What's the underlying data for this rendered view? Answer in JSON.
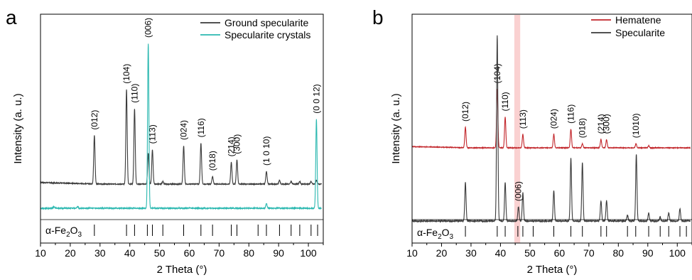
{
  "chart_data": [
    {
      "type": "line",
      "panel_label": "a",
      "xlabel": "2 Theta (°)",
      "ylabel": "Intensity (a. u.)",
      "xlim": [
        10,
        105
      ],
      "xticks": [
        10,
        20,
        30,
        40,
        50,
        60,
        70,
        80,
        90,
        100
      ],
      "legend_position": "top-right",
      "series": [
        {
          "name": "Ground specularite",
          "color": "#3a3a3a",
          "baseline": 0.11,
          "peaks": [
            {
              "x": 28.1,
              "h": 0.38,
              "label": "(012)"
            },
            {
              "x": 38.9,
              "h": 0.74,
              "label": "(104)"
            },
            {
              "x": 41.6,
              "h": 0.59,
              "label": "(110)"
            },
            {
              "x": 46.2,
              "h": 0.24
            },
            {
              "x": 47.6,
              "h": 0.27,
              "label": "(113)"
            },
            {
              "x": 51.1,
              "h": 0.02
            },
            {
              "x": 58.1,
              "h": 0.3,
              "label": "(024)"
            },
            {
              "x": 63.9,
              "h": 0.32,
              "label": "(116)"
            },
            {
              "x": 67.8,
              "h": 0.06,
              "label": "(018)"
            },
            {
              "x": 74.1,
              "h": 0.17,
              "label": "(214)"
            },
            {
              "x": 76.0,
              "h": 0.19,
              "label": "(300)"
            },
            {
              "x": 85.9,
              "h": 0.1,
              "label": "(1 0 10)"
            },
            {
              "x": 90.3,
              "h": 0.03
            },
            {
              "x": 94.2,
              "h": 0.02
            },
            {
              "x": 97.1,
              "h": 0.02
            },
            {
              "x": 100.9,
              "h": 0.02
            },
            {
              "x": 102.7,
              "h": 0.03
            }
          ]
        },
        {
          "name": "Specularite crystals",
          "color": "#2bb8b0",
          "baseline": 0.0,
          "peaks": [
            {
              "x": 14.5,
              "h": 0.01
            },
            {
              "x": 22.5,
              "h": 0.01
            },
            {
              "x": 46.2,
              "h": 1.0,
              "label": "(006)"
            },
            {
              "x": 85.9,
              "h": 0.03
            },
            {
              "x": 102.7,
              "h": 0.54,
              "label": "(0 0 12)"
            }
          ]
        }
      ],
      "reference": {
        "label": "α-Fe2O3",
        "positions": [
          28.1,
          38.9,
          41.6,
          45.9,
          47.6,
          51.1,
          58.1,
          63.9,
          67.8,
          74.1,
          76.0,
          83.1,
          85.9,
          90.3,
          94.2,
          97.1,
          100.9,
          103.1
        ]
      }
    },
    {
      "type": "line",
      "panel_label": "b",
      "xlabel": "2 Theta (°)",
      "ylabel": "Intensity (a. u.)",
      "xlim": [
        10,
        105
      ],
      "xticks": [
        10,
        20,
        30,
        40,
        50,
        60,
        70,
        80,
        90,
        100
      ],
      "legend_position": "top-right",
      "highlight_band": [
        44.7,
        46.7
      ],
      "series": [
        {
          "name": "Hematene",
          "color": "#c2262b",
          "baseline": 0.62,
          "peaks": [
            {
              "x": 28.1,
              "h": 0.2,
              "label": "(012)"
            },
            {
              "x": 38.9,
              "h": 0.57,
              "label": "(104)"
            },
            {
              "x": 41.6,
              "h": 0.3,
              "label": "(110)"
            },
            {
              "x": 47.6,
              "h": 0.13,
              "label": "(113)"
            },
            {
              "x": 58.1,
              "h": 0.13,
              "label": "(024)"
            },
            {
              "x": 63.9,
              "h": 0.18,
              "label": "(116)"
            },
            {
              "x": 67.8,
              "h": 0.04,
              "label": "(018)"
            },
            {
              "x": 74.1,
              "h": 0.08,
              "label": "(214)"
            },
            {
              "x": 76.0,
              "h": 0.08,
              "label": "(300)"
            },
            {
              "x": 86.0,
              "h": 0.04,
              "label": "(1010)"
            },
            {
              "x": 90.3,
              "h": 0.02
            }
          ]
        },
        {
          "name": "Specularite",
          "color": "#3a3a3a",
          "baseline": 0.0,
          "peaks": [
            {
              "x": 28.1,
              "h": 0.19
            },
            {
              "x": 38.9,
              "h": 0.92
            },
            {
              "x": 41.6,
              "h": 0.19
            },
            {
              "x": 46.1,
              "h": 0.07,
              "label": "(006)"
            },
            {
              "x": 47.6,
              "h": 0.14
            },
            {
              "x": 58.1,
              "h": 0.15
            },
            {
              "x": 63.9,
              "h": 0.31
            },
            {
              "x": 67.8,
              "h": 0.29
            },
            {
              "x": 74.1,
              "h": 0.1
            },
            {
              "x": 76.0,
              "h": 0.1
            },
            {
              "x": 83.1,
              "h": 0.03
            },
            {
              "x": 86.1,
              "h": 0.33
            },
            {
              "x": 90.3,
              "h": 0.04
            },
            {
              "x": 94.2,
              "h": 0.02
            },
            {
              "x": 97.1,
              "h": 0.04
            },
            {
              "x": 100.9,
              "h": 0.06
            }
          ]
        }
      ],
      "reference": {
        "label": "α-Fe2O3",
        "positions": [
          28.1,
          38.9,
          41.6,
          45.9,
          47.6,
          51.1,
          58.1,
          63.9,
          67.8,
          74.1,
          76.0,
          83.1,
          85.9,
          90.3,
          94.2,
          97.1,
          100.9,
          103.1
        ]
      }
    }
  ]
}
